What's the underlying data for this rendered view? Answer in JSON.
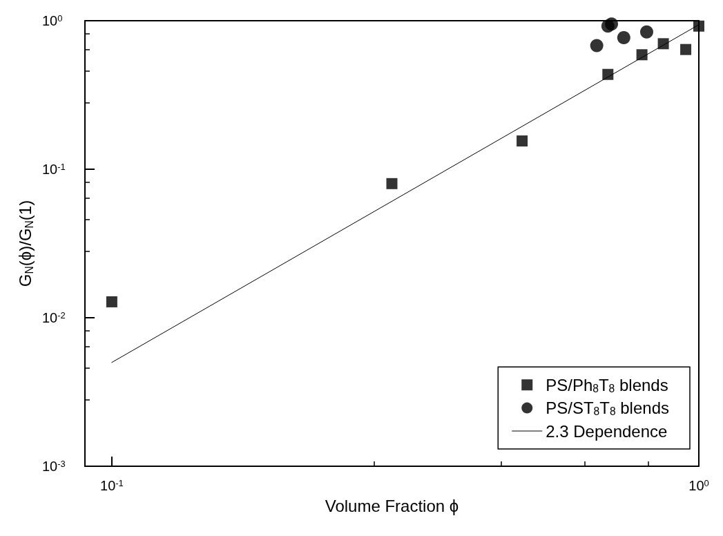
{
  "chart_data": {
    "type": "scatter",
    "xlabel": "Volume Fraction ϕ",
    "ylabel": "G$_{N}$(ϕ)/G$_{N}$(1)",
    "log": "xy",
    "grid": false,
    "legend": "bottom right",
    "xlim": [
      0.09,
      1
    ],
    "ylim": [
      0.001,
      1
    ],
    "xticks": [
      {
        "value": 0.1,
        "label": "10$^{-1}$"
      },
      {
        "value": 1,
        "label": "10$^{0}$"
      }
    ],
    "yticks": [
      {
        "value": 0.001,
        "label": "10$^{-3}$"
      },
      {
        "value": 0.01,
        "label": "10$^{-2}$"
      },
      {
        "value": 0.1,
        "label": "10$^{-1}$"
      },
      {
        "value": 1,
        "label": "10$^{0}$"
      }
    ],
    "series": [
      {
        "name": "PS/Ph$_{8}$T$_{8}$ blends",
        "color": "#000000",
        "marker": "square",
        "x": [
          0.1,
          0.3,
          0.5,
          0.7,
          0.8,
          0.87,
          0.95,
          1.0
        ],
        "values": [
          0.0128,
          0.08,
          0.155,
          0.435,
          0.59,
          0.7,
          0.64,
          0.92
        ]
      },
      {
        "name": "PS/ST$_{8}$T$_{8}$ blends",
        "color": "#000000",
        "marker": "circle",
        "x": [
          0.67,
          0.7,
          0.71,
          0.745,
          0.815
        ],
        "values": [
          0.68,
          0.92,
          0.95,
          0.77,
          0.84
        ]
      },
      {
        "name": "2.3 Dependence",
        "type": "line",
        "color": "#000000",
        "marker": "none",
        "line_style": "solid",
        "x": [
          0.1,
          1.0
        ],
        "values": [
          0.005,
          0.94
        ]
      }
    ]
  }
}
